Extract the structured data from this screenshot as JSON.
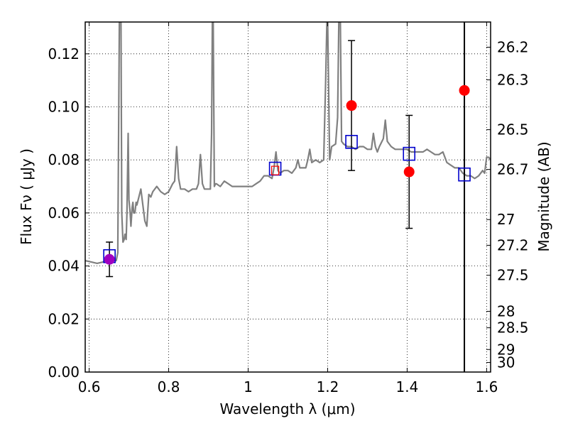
{
  "chart_data": {
    "type": "scatter",
    "xlabel": "Wavelength  λ (μm)",
    "ylabel": "Flux  Fν  ( μJy )",
    "ylabel_right": "Magnitude (AB)",
    "xlim": [
      0.59,
      1.61
    ],
    "ylim": [
      0.0,
      0.132
    ],
    "grid": true,
    "x_ticks": [
      0.6,
      0.8,
      1.0,
      1.2,
      1.4,
      1.6
    ],
    "x_tick_labels": [
      "0.6",
      "0.8",
      "1",
      "1.2",
      "1.4",
      "1.6"
    ],
    "y_ticks": [
      0.0,
      0.02,
      0.04,
      0.06,
      0.08,
      0.1,
      0.12
    ],
    "y_tick_labels": [
      "0.00",
      "0.02",
      "0.04",
      "0.06",
      "0.08",
      "0.10",
      "0.12"
    ],
    "right_ticks": [
      {
        "flux": 0.1225,
        "label": "26.2"
      },
      {
        "flux": 0.1102,
        "label": "26.3"
      },
      {
        "flux": 0.0914,
        "label": "26.5"
      },
      {
        "flux": 0.0764,
        "label": "26.7"
      },
      {
        "flux": 0.0575,
        "label": "27"
      },
      {
        "flux": 0.0478,
        "label": "27.2"
      },
      {
        "flux": 0.0365,
        "label": "27.5"
      },
      {
        "flux": 0.0229,
        "label": "28"
      },
      {
        "flux": 0.0167,
        "label": "28.5"
      },
      {
        "flux": 0.0085,
        "label": "29"
      },
      {
        "flux": 0.0036,
        "label": "30"
      }
    ],
    "series": [
      {
        "kind": "line",
        "color": "#808080",
        "x": [
          0.59,
          0.62,
          0.65,
          0.668,
          0.672,
          0.676,
          0.678,
          0.68,
          0.682,
          0.685,
          0.688,
          0.69,
          0.693,
          0.695,
          0.698,
          0.7,
          0.703,
          0.705,
          0.708,
          0.71,
          0.712,
          0.715,
          0.718,
          0.72,
          0.725,
          0.73,
          0.735,
          0.74,
          0.745,
          0.75,
          0.755,
          0.76,
          0.77,
          0.78,
          0.79,
          0.8,
          0.81,
          0.815,
          0.82,
          0.825,
          0.83,
          0.84,
          0.85,
          0.86,
          0.87,
          0.875,
          0.88,
          0.885,
          0.89,
          0.895,
          0.9,
          0.905,
          0.908,
          0.91,
          0.912,
          0.915,
          0.918,
          0.92,
          0.93,
          0.94,
          0.95,
          0.96,
          0.97,
          0.98,
          0.99,
          1.0,
          1.01,
          1.02,
          1.03,
          1.04,
          1.05,
          1.06,
          1.065,
          1.07,
          1.075,
          1.08,
          1.09,
          1.1,
          1.11,
          1.12,
          1.125,
          1.13,
          1.14,
          1.145,
          1.15,
          1.155,
          1.16,
          1.17,
          1.18,
          1.19,
          1.195,
          1.198,
          1.2,
          1.203,
          1.205,
          1.21,
          1.22,
          1.225,
          1.228,
          1.232,
          1.235,
          1.24,
          1.25,
          1.26,
          1.27,
          1.28,
          1.29,
          1.3,
          1.31,
          1.315,
          1.32,
          1.325,
          1.33,
          1.34,
          1.345,
          1.35,
          1.36,
          1.37,
          1.38,
          1.39,
          1.4,
          1.41,
          1.42,
          1.43,
          1.44,
          1.45,
          1.46,
          1.47,
          1.48,
          1.49,
          1.5,
          1.51,
          1.52,
          1.53,
          1.54,
          1.55,
          1.56,
          1.57,
          1.58,
          1.59,
          1.595,
          1.6,
          1.605,
          1.61
        ],
        "y": [
          0.042,
          0.041,
          0.042,
          0.042,
          0.045,
          0.132,
          0.132,
          0.132,
          0.06,
          0.049,
          0.05,
          0.052,
          0.05,
          0.06,
          0.09,
          0.065,
          0.06,
          0.055,
          0.062,
          0.064,
          0.06,
          0.06,
          0.064,
          0.063,
          0.066,
          0.069,
          0.063,
          0.057,
          0.055,
          0.067,
          0.066,
          0.068,
          0.07,
          0.068,
          0.067,
          0.068,
          0.071,
          0.072,
          0.085,
          0.073,
          0.069,
          0.069,
          0.068,
          0.069,
          0.069,
          0.071,
          0.082,
          0.071,
          0.069,
          0.069,
          0.069,
          0.069,
          0.09,
          0.132,
          0.132,
          0.07,
          0.071,
          0.071,
          0.07,
          0.072,
          0.071,
          0.07,
          0.07,
          0.07,
          0.07,
          0.07,
          0.07,
          0.071,
          0.072,
          0.074,
          0.074,
          0.073,
          0.077,
          0.083,
          0.076,
          0.075,
          0.076,
          0.076,
          0.075,
          0.077,
          0.08,
          0.077,
          0.077,
          0.077,
          0.08,
          0.084,
          0.079,
          0.08,
          0.079,
          0.08,
          0.11,
          0.132,
          0.132,
          0.1,
          0.08,
          0.085,
          0.086,
          0.096,
          0.132,
          0.132,
          0.087,
          0.086,
          0.085,
          0.085,
          0.084,
          0.085,
          0.085,
          0.084,
          0.084,
          0.09,
          0.085,
          0.083,
          0.085,
          0.088,
          0.095,
          0.087,
          0.085,
          0.084,
          0.084,
          0.084,
          0.084,
          0.083,
          0.083,
          0.083,
          0.083,
          0.084,
          0.083,
          0.082,
          0.082,
          0.083,
          0.079,
          0.078,
          0.077,
          0.077,
          0.075,
          0.074,
          0.074,
          0.073,
          0.074,
          0.076,
          0.075,
          0.081,
          0.081,
          0.08
        ]
      },
      {
        "kind": "points",
        "marker": "circle",
        "color": "#ff0000",
        "x": [
          0.651,
          1.068,
          1.26,
          1.405,
          1.544
        ],
        "y": [
          0.0425,
          0.076,
          0.1005,
          0.0755,
          0.1062
        ],
        "yerr": [
          0.0065,
          null,
          0.0245,
          0.0213,
          null
        ],
        "yerr_up_to_top": [
          false,
          false,
          false,
          false,
          true
        ]
      },
      {
        "kind": "points",
        "marker": "square",
        "color": "#0000cc",
        "x": [
          0.651,
          1.068,
          1.26,
          1.405,
          1.544
        ],
        "y": [
          0.0437,
          0.0767,
          0.0868,
          0.0823,
          0.0745
        ]
      }
    ]
  }
}
